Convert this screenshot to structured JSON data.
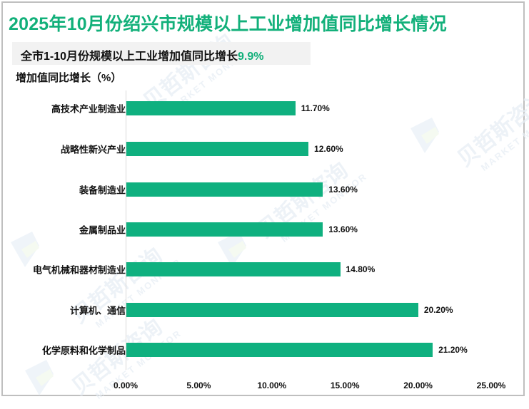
{
  "title": "2025年10月份绍兴市规模以上工业增加值同比增长情况",
  "subtitle": {
    "text": "全市1-10月份规模以上工业增加值同比增长",
    "highlight": "9.9%"
  },
  "watermark": {
    "cn": "贝哲斯咨询",
    "en": "MARKET MONITOR"
  },
  "colors": {
    "accent": "#12b07a",
    "bar": "#0fb07f",
    "border": "#bfbfbf",
    "subtitle_bg": "#f2f2f2"
  },
  "chart_data": {
    "type": "bar",
    "orientation": "horizontal",
    "title": "2025年10月份绍兴市规模以上工业增加值同比增长情况",
    "subtitle": "全市1-10月份规模以上工业增加值同比增长9.9%",
    "xlabel": "",
    "ylabel": "增加值同比增长（%）",
    "categories": [
      "高技术产业制造业",
      "战略性新兴产业",
      "装备制造业",
      "金属制品业",
      "电气机械和器材制造业",
      "计算机、通信",
      "化学原料和化学制品"
    ],
    "values": [
      11.7,
      12.6,
      13.6,
      13.6,
      14.8,
      20.2,
      21.2
    ],
    "value_labels": [
      "11.70%",
      "12.60%",
      "13.60%",
      "13.60%",
      "14.80%",
      "20.20%",
      "21.20%"
    ],
    "xlim": [
      0,
      25
    ],
    "xticks": [
      "0.00%",
      "5.00%",
      "10.00%",
      "15.00%",
      "20.00%",
      "25.00%"
    ],
    "grid": false,
    "legend": null
  }
}
